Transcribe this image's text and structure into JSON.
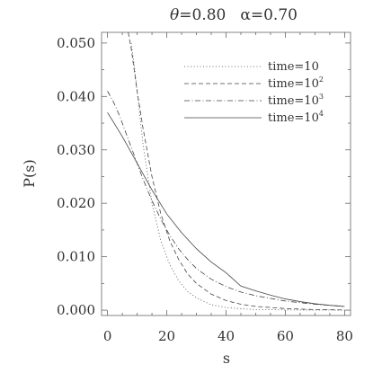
{
  "chart_data": {
    "type": "line",
    "title_parts": {
      "theta_symbol": "θ",
      "theta_value": "=0.80",
      "alpha_symbol": "α",
      "alpha_value": "=0.70"
    },
    "xlabel": "s",
    "ylabel": "P(s)",
    "xlim": [
      -2,
      82
    ],
    "ylim": [
      -0.001,
      0.052
    ],
    "xticks": [
      {
        "value": 0,
        "label": "0"
      },
      {
        "value": 20,
        "label": "20"
      },
      {
        "value": 40,
        "label": "40"
      },
      {
        "value": 60,
        "label": "60"
      },
      {
        "value": 80,
        "label": "80"
      }
    ],
    "yticks": [
      {
        "value": 0.0,
        "label": "0.000"
      },
      {
        "value": 0.01,
        "label": "0.010"
      },
      {
        "value": 0.02,
        "label": "0.020"
      },
      {
        "value": 0.03,
        "label": "0.030"
      },
      {
        "value": 0.04,
        "label": "0.040"
      },
      {
        "value": 0.05,
        "label": "0.050"
      }
    ],
    "grid": false,
    "legend_position": "top-right",
    "series": [
      {
        "name_base": "time=10",
        "name_exp": "",
        "dash": "dotted",
        "x": [
          8,
          9,
          10,
          12,
          15,
          18,
          21,
          24,
          27,
          30,
          35,
          40,
          45,
          50,
          60,
          70,
          80
        ],
        "y": [
          0.05,
          0.046,
          0.041,
          0.031,
          0.02,
          0.013,
          0.0085,
          0.0055,
          0.0035,
          0.0023,
          0.001,
          0.0005,
          0.00025,
          0.00012,
          4e-05,
          1e-05,
          0.0
        ]
      },
      {
        "name_base": "time=10",
        "name_exp": "2",
        "dash": "dashed",
        "x": [
          7,
          8,
          10,
          12,
          15,
          18,
          21,
          24,
          27,
          30,
          35,
          40,
          45,
          50,
          60,
          70,
          80
        ],
        "y": [
          0.052,
          0.049,
          0.041,
          0.034,
          0.025,
          0.018,
          0.013,
          0.0095,
          0.0068,
          0.005,
          0.003,
          0.0018,
          0.0011,
          0.0007,
          0.0003,
          0.0001,
          4e-05
        ]
      },
      {
        "name_base": "time=10",
        "name_exp": "3",
        "dash": "dashdot",
        "x": [
          0,
          2,
          4,
          6,
          8,
          10,
          12,
          15,
          18,
          21,
          24,
          27,
          30,
          35,
          40,
          45,
          50,
          60,
          70,
          80
        ],
        "y": [
          0.041,
          0.039,
          0.0365,
          0.0335,
          0.0305,
          0.0275,
          0.0245,
          0.0205,
          0.017,
          0.014,
          0.0115,
          0.0095,
          0.0078,
          0.0058,
          0.0044,
          0.0034,
          0.0027,
          0.0017,
          0.0011,
          0.0007
        ]
      },
      {
        "name_base": "time=10",
        "name_exp": "4",
        "dash": "solid",
        "x": [
          0,
          5,
          10,
          15,
          20,
          25,
          30,
          35,
          40,
          45,
          50,
          55,
          60,
          65,
          70,
          75,
          80
        ],
        "y": [
          0.037,
          0.0325,
          0.0275,
          0.0225,
          0.018,
          0.0145,
          0.0115,
          0.009,
          0.007,
          0.0045,
          0.0036,
          0.0028,
          0.0021,
          0.0016,
          0.0012,
          0.0009,
          0.0007
        ]
      }
    ]
  }
}
